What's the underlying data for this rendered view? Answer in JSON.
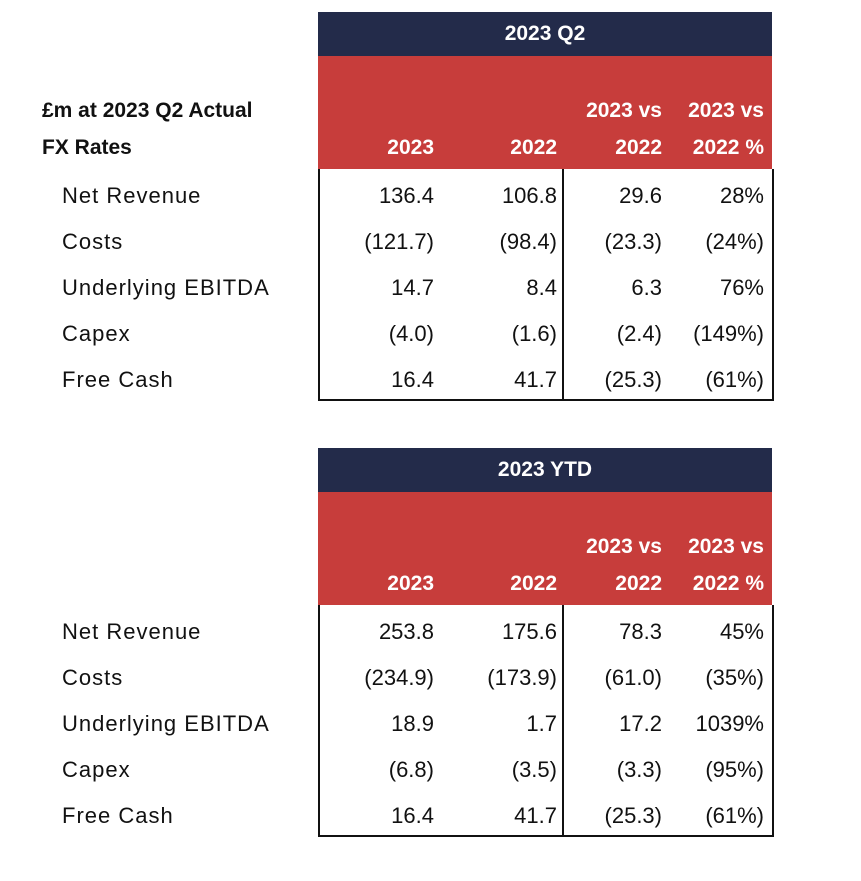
{
  "header_label": {
    "line1": "£m at 2023 Q2 Actual",
    "line2": "FX Rates"
  },
  "columns": {
    "c1": [
      "",
      "2023"
    ],
    "c2": [
      "",
      "2022"
    ],
    "c3": [
      "2023 vs",
      "2022"
    ],
    "c4": [
      "2023 vs",
      "2022 %"
    ]
  },
  "tables": [
    {
      "title": "2023 Q2",
      "rows": [
        {
          "label": "Net Revenue",
          "values": [
            "136.4",
            "106.8",
            "29.6",
            "28%"
          ]
        },
        {
          "label": "Costs",
          "values": [
            "(121.7)",
            "(98.4)",
            "(23.3)",
            "(24%)"
          ]
        },
        {
          "label": "Underlying EBITDA",
          "values": [
            "14.7",
            "8.4",
            "6.3",
            "76%"
          ]
        },
        {
          "label": "Capex",
          "values": [
            "(4.0)",
            "(1.6)",
            "(2.4)",
            "(149%)"
          ]
        },
        {
          "label": "Free Cash",
          "values": [
            "16.4",
            "41.7",
            "(25.3)",
            "(61%)"
          ]
        }
      ]
    },
    {
      "title": "2023 YTD",
      "rows": [
        {
          "label": "Net Revenue",
          "values": [
            "253.8",
            "175.6",
            "78.3",
            "45%"
          ]
        },
        {
          "label": "Costs",
          "values": [
            "(234.9)",
            "(173.9)",
            "(61.0)",
            "(35%)"
          ]
        },
        {
          "label": "Underlying EBITDA",
          "values": [
            "18.9",
            "1.7",
            "17.2",
            "1039%"
          ]
        },
        {
          "label": "Capex",
          "values": [
            "(6.8)",
            "(3.5)",
            "(3.3)",
            "(95%)"
          ]
        },
        {
          "label": "Free Cash",
          "values": [
            "16.4",
            "41.7",
            "(25.3)",
            "(61%)"
          ]
        }
      ]
    }
  ],
  "colors": {
    "title_bar": "#232b4a",
    "header_red": "#c73d3b",
    "text": "#111111"
  }
}
